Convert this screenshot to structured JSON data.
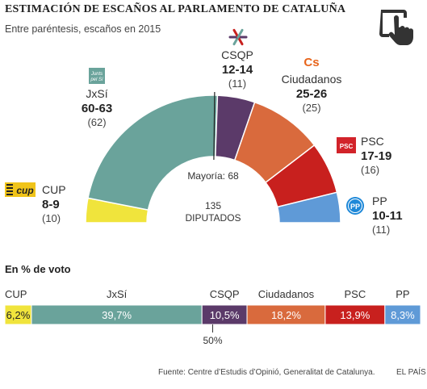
{
  "header": {
    "title": "ESTIMACIÓN DE ESCAÑOS AL PARLAMENTO DE CATALUÑA",
    "subtitle": "Entre paréntesis, escaños en 2015"
  },
  "icons": {
    "touch": "hand-pointer-icon"
  },
  "chart_data": [
    {
      "type": "pie",
      "variant": "semicircle-parliament",
      "total_seats": 135,
      "center_label": [
        "135",
        "DIPUTADOS"
      ],
      "majority": {
        "label": "Mayoría: 68",
        "seats": 68
      },
      "parties": [
        {
          "name": "CUP",
          "estimate": "8-9",
          "seats_mid": 8.5,
          "seats_2015": "(10)",
          "color": "#f0e43c",
          "logo_text": "cup",
          "logo_color": "#f0c419"
        },
        {
          "name": "JxSí",
          "estimate": "60-63",
          "seats_mid": 61.5,
          "seats_2015": "(62)",
          "color": "#6aa39b",
          "logo_text": "Junts pel Sí",
          "logo_color": "#6aa39b"
        },
        {
          "name": "CSQP",
          "estimate": "12-14",
          "seats_mid": 13,
          "seats_2015": "(11)",
          "color": "#5b3a69",
          "logo_text": "",
          "logo_color": "#5b3a69"
        },
        {
          "name": "Ciudadanos",
          "estimate": "25-26",
          "seats_mid": 25.5,
          "seats_2015": "(25)",
          "color": "#d96a3d",
          "logo_text": "Cs",
          "logo_color": "#e8651c"
        },
        {
          "name": "PSC",
          "estimate": "17-19",
          "seats_mid": 18,
          "seats_2015": "(16)",
          "color": "#c8201e",
          "logo_text": "PSC",
          "logo_color": "#d2232a"
        },
        {
          "name": "PP",
          "estimate": "10-11",
          "seats_mid": 10.5,
          "seats_2015": "(11)",
          "color": "#5f9ad7",
          "logo_text": "PP",
          "logo_color": "#1e88d8"
        }
      ]
    },
    {
      "type": "bar",
      "variant": "stacked-horizontal",
      "title": "En % de voto",
      "categories": [
        "CUP",
        "JxSí",
        "CSQP",
        "Ciudadanos",
        "PSC",
        "PP"
      ],
      "values": [
        6.2,
        39.7,
        10.5,
        18.2,
        13.9,
        8.3
      ],
      "value_labels": [
        "6,2%",
        "39,7%",
        "10,5%",
        "18,2%",
        "13,9%",
        "8,3%"
      ],
      "colors": [
        "#f0e43c",
        "#6aa39b",
        "#5b3a69",
        "#d96a3d",
        "#c8201e",
        "#5f9ad7"
      ],
      "midline_label": "50%"
    }
  ],
  "footer": {
    "source": "Fuente: Centre d’Estudis d’Opinió, Generalitat de Catalunya.",
    "brand": "EL PAÍS"
  }
}
